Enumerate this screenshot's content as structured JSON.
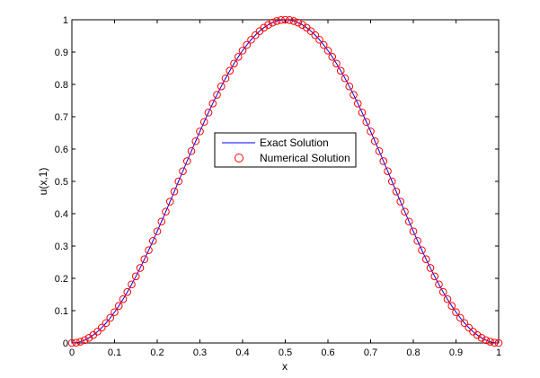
{
  "chart_data": {
    "type": "line",
    "title": "",
    "xlabel": "x",
    "ylabel": "u(x,1)",
    "xlim": [
      0,
      1
    ],
    "ylim": [
      0,
      1
    ],
    "xticks": [
      "0",
      "0.1",
      "0.2",
      "0.3",
      "0.4",
      "0.5",
      "0.6",
      "0.7",
      "0.8",
      "0.9",
      "1"
    ],
    "yticks": [
      "0",
      "0.1",
      "0.2",
      "0.3",
      "0.4",
      "0.5",
      "0.6",
      "0.7",
      "0.8",
      "0.9",
      "1"
    ],
    "grid": false,
    "legend_position": "center",
    "series": [
      {
        "name": "Exact Solution",
        "style": "line",
        "color": "#0000ff",
        "formula": "sin(pi*x)^2",
        "x": [
          0,
          0.05,
          0.1,
          0.15,
          0.2,
          0.25,
          0.3,
          0.35,
          0.4,
          0.45,
          0.5,
          0.55,
          0.6,
          0.65,
          0.7,
          0.75,
          0.8,
          0.85,
          0.9,
          0.95,
          1
        ],
        "y": [
          0,
          0.024,
          0.095,
          0.206,
          0.345,
          0.5,
          0.655,
          0.794,
          0.905,
          0.976,
          1,
          0.976,
          0.905,
          0.794,
          0.655,
          0.5,
          0.345,
          0.206,
          0.095,
          0.024,
          0
        ]
      },
      {
        "name": "Numerical Solution",
        "style": "markers",
        "marker": "circle",
        "color": "#ff0000",
        "x": [
          0,
          0.05,
          0.1,
          0.15,
          0.2,
          0.25,
          0.3,
          0.35,
          0.4,
          0.45,
          0.5,
          0.55,
          0.6,
          0.65,
          0.7,
          0.75,
          0.8,
          0.85,
          0.9,
          0.95,
          1
        ],
        "y": [
          0,
          0.024,
          0.095,
          0.206,
          0.345,
          0.5,
          0.655,
          0.794,
          0.905,
          0.976,
          1,
          0.976,
          0.905,
          0.794,
          0.655,
          0.5,
          0.345,
          0.206,
          0.095,
          0.024,
          0
        ]
      }
    ]
  }
}
